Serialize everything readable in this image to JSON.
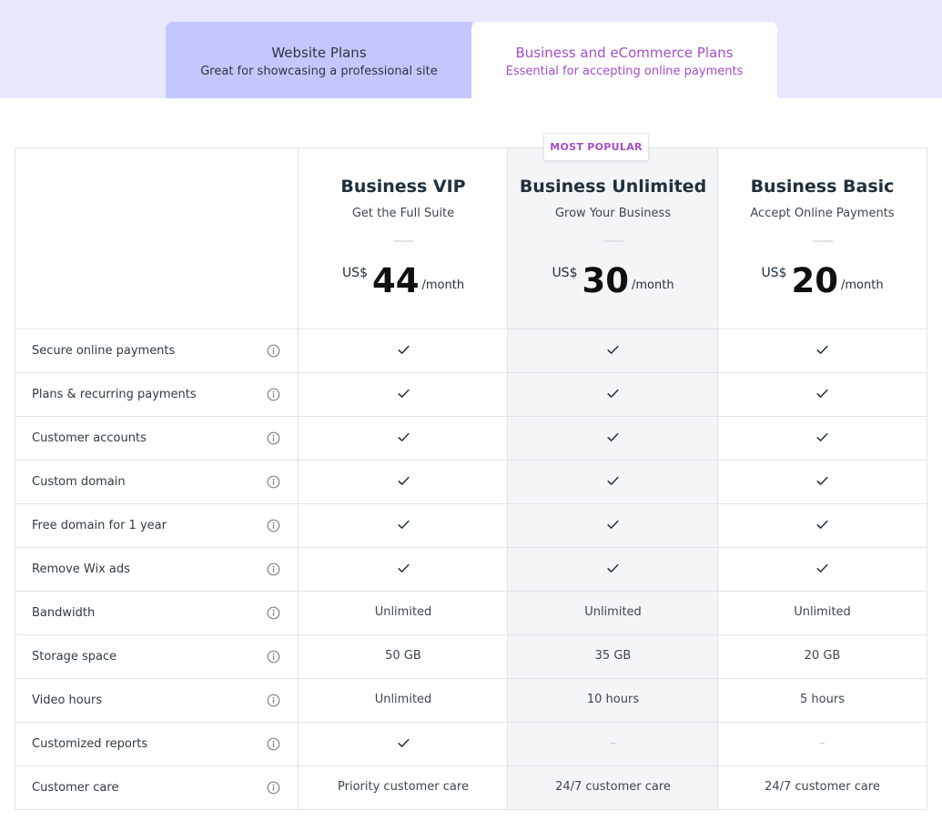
{
  "tabs": [
    {
      "title": "Website Plans",
      "subtitle": "Great for showcasing a professional site"
    },
    {
      "title": "Business and eCommerce Plans",
      "subtitle": "Essential for accepting online payments"
    }
  ],
  "badge": "MOST POPULAR",
  "plans": [
    {
      "name": "Business VIP",
      "tagline": "Get the Full Suite",
      "currency": "US$",
      "amount": "44",
      "period": "/month"
    },
    {
      "name": "Business Unlimited",
      "tagline": "Grow Your Business",
      "currency": "US$",
      "amount": "30",
      "period": "/month"
    },
    {
      "name": "Business Basic",
      "tagline": "Accept Online Payments",
      "currency": "US$",
      "amount": "20",
      "period": "/month"
    }
  ],
  "features": [
    {
      "label": "Secure online payments",
      "values": [
        "check",
        "check",
        "check"
      ]
    },
    {
      "label": "Plans & recurring payments",
      "values": [
        "check",
        "check",
        "check"
      ]
    },
    {
      "label": "Customer accounts",
      "values": [
        "check",
        "check",
        "check"
      ]
    },
    {
      "label": "Custom domain",
      "values": [
        "check",
        "check",
        "check"
      ]
    },
    {
      "label": "Free domain for 1 year",
      "values": [
        "check",
        "check",
        "check"
      ]
    },
    {
      "label": "Remove Wix ads",
      "values": [
        "check",
        "check",
        "check"
      ]
    },
    {
      "label": "Bandwidth",
      "values": [
        "Unlimited",
        "Unlimited",
        "Unlimited"
      ]
    },
    {
      "label": "Storage space",
      "values": [
        "50 GB",
        "35 GB",
        "20 GB"
      ]
    },
    {
      "label": "Video hours",
      "values": [
        "Unlimited",
        "10 hours",
        "5 hours"
      ]
    },
    {
      "label": "Customized reports",
      "values": [
        "check",
        "–",
        "–"
      ]
    },
    {
      "label": "Customer care",
      "values": [
        "Priority customer care",
        "24/7 customer care",
        "24/7 customer care"
      ]
    }
  ],
  "icons": {
    "info": "info-icon",
    "check": "check-icon"
  },
  "colors": {
    "accent": "#a34ecb",
    "band": "#e7e8fe",
    "inactive_tab": "#c3c7fe",
    "popular_column": "#f4f5f7",
    "border": "#dfe3e8"
  }
}
